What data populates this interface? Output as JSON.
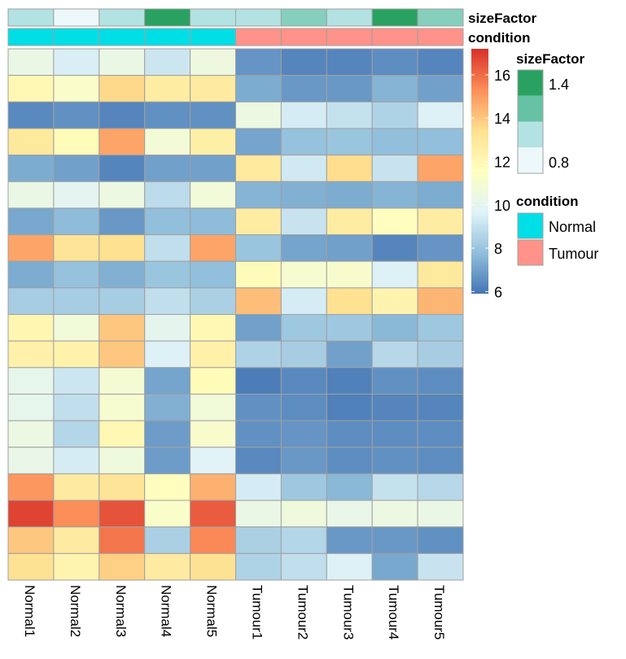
{
  "chart_data": {
    "type": "heatmap",
    "columns": [
      "Normal1",
      "Normal2",
      "Normal3",
      "Normal4",
      "Normal5",
      "Tumour1",
      "Tumour2",
      "Tumour3",
      "Tumour4",
      "Tumour5"
    ],
    "values": [
      [
        10.3,
        9.5,
        10.3,
        9.2,
        10.5,
        6.7,
        6.3,
        6.3,
        6.5,
        6.3
      ],
      [
        12.0,
        11.2,
        13.6,
        12.7,
        12.8,
        7.3,
        6.8,
        6.8,
        7.5,
        7.0
      ],
      [
        6.4,
        6.6,
        6.3,
        6.6,
        6.6,
        10.4,
        9.4,
        9.0,
        8.5,
        9.6
      ],
      [
        12.9,
        11.8,
        14.8,
        10.8,
        12.5,
        7.1,
        7.9,
        8.0,
        7.8,
        7.8
      ],
      [
        7.3,
        7.0,
        6.3,
        7.0,
        7.0,
        12.9,
        9.3,
        13.5,
        9.1,
        14.8
      ],
      [
        10.3,
        9.9,
        10.4,
        8.8,
        10.7,
        7.5,
        7.4,
        7.3,
        7.5,
        7.3
      ],
      [
        7.2,
        7.7,
        6.8,
        7.8,
        7.7,
        12.7,
        9.1,
        12.7,
        11.6,
        12.7
      ],
      [
        14.8,
        13.2,
        13.4,
        8.9,
        14.8,
        8.0,
        7.1,
        7.0,
        6.3,
        6.7
      ],
      [
        7.3,
        7.9,
        7.4,
        8.0,
        7.8,
        11.8,
        11.0,
        11.1,
        9.6,
        12.9
      ],
      [
        8.3,
        8.3,
        8.3,
        8.9,
        8.4,
        14.2,
        9.4,
        13.4,
        12.2,
        14.4
      ],
      [
        12.1,
        10.7,
        14.0,
        10.0,
        12.0,
        7.0,
        8.1,
        8.1,
        7.6,
        8.1
      ],
      [
        12.4,
        12.3,
        14.0,
        9.6,
        12.4,
        8.5,
        8.3,
        7.0,
        8.7,
        8.3
      ],
      [
        10.1,
        9.2,
        10.9,
        7.1,
        11.8,
        6.1,
        6.4,
        6.2,
        6.6,
        6.5
      ],
      [
        10.1,
        8.9,
        11.0,
        7.4,
        10.7,
        6.6,
        6.5,
        6.2,
        6.3,
        6.3
      ],
      [
        10.4,
        8.6,
        12.0,
        6.9,
        11.1,
        6.6,
        6.7,
        6.5,
        6.5,
        6.5
      ],
      [
        10.2,
        9.4,
        10.6,
        6.9,
        9.7,
        6.4,
        6.8,
        6.5,
        6.6,
        6.5
      ],
      [
        15.1,
        12.8,
        13.2,
        11.6,
        14.5,
        9.4,
        8.1,
        7.6,
        9.0,
        8.7
      ],
      [
        16.8,
        15.3,
        16.5,
        11.2,
        16.3,
        10.3,
        10.6,
        10.2,
        10.4,
        10.3
      ],
      [
        14.0,
        12.8,
        15.8,
        8.4,
        15.4,
        8.4,
        8.6,
        6.8,
        6.8,
        6.6
      ],
      [
        13.3,
        12.2,
        13.8,
        12.8,
        13.3,
        8.5,
        8.9,
        9.6,
        7.2,
        9.1
      ]
    ],
    "annotations": {
      "sizeFactor": {
        "label": "sizeFactor",
        "values": [
          "b",
          "a",
          "b",
          "d",
          "b",
          "b",
          "c",
          "b",
          "d",
          "c"
        ]
      },
      "condition": {
        "label": "condition",
        "values": [
          "Normal",
          "Normal",
          "Normal",
          "Normal",
          "Normal",
          "Tumour",
          "Tumour",
          "Tumour",
          "Tumour",
          "Tumour"
        ]
      }
    },
    "color_scale": {
      "stops": [
        "#4575B4",
        "#91BFDB",
        "#E0F3F8",
        "#FFFFBF",
        "#FEE090",
        "#FC8D59",
        "#D73027"
      ],
      "domain": [
        5.9,
        17.2
      ],
      "ticks": [
        "6",
        "8",
        "10",
        "12",
        "14",
        "16"
      ]
    },
    "legend": {
      "sizeFactor": {
        "title": "sizeFactor",
        "colors": [
          "#29A261",
          "#66C2A5",
          "#B2E2E2",
          "#EDF8FB"
        ],
        "high_label": "1.4",
        "low_label": "0.8"
      },
      "condition": {
        "title": "condition",
        "items": [
          {
            "label": "Normal",
            "color": "#00DEE6"
          },
          {
            "label": "Tumour",
            "color": "#FF9289"
          }
        ]
      }
    },
    "sizeFactor_colors": {
      "a": "#EDF8FB",
      "b": "#B2E2E2",
      "c": "#86CFBC",
      "d": "#29A261"
    },
    "grid": true,
    "legend_position": "right"
  }
}
